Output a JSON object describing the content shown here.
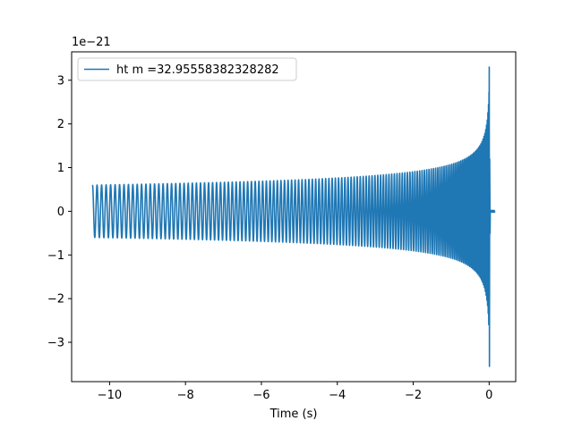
{
  "chart_data": {
    "type": "line",
    "title": "",
    "xlabel": "Time (s)",
    "ylabel": "",
    "y_offset_label": "1e−21",
    "xlim": [
      -11.0,
      0.7
    ],
    "ylim": [
      -3.9,
      3.65
    ],
    "x_ticks": [
      -10,
      -8,
      -6,
      -4,
      -2,
      0
    ],
    "x_tick_labels": [
      "−10",
      "−8",
      "−6",
      "−4",
      "−2",
      "0"
    ],
    "y_ticks": [
      3,
      2,
      1,
      0,
      -1,
      -2,
      -3
    ],
    "y_tick_labels": [
      "3",
      "2",
      "1",
      "0",
      "−1",
      "−2",
      "−3"
    ],
    "grid": false,
    "legend_position": "upper-left",
    "series": [
      {
        "name": "ht m =32.95558382328282",
        "color": "#1f77b4",
        "waveform": "gravitational-wave chirp",
        "t_start": -10.45,
        "t_merger": 0.0,
        "t_end": 0.15,
        "initial_amplitude": 0.6,
        "peak_positive": 3.3,
        "peak_negative": -3.55,
        "ringdown_amplitude": 0.02
      }
    ]
  }
}
